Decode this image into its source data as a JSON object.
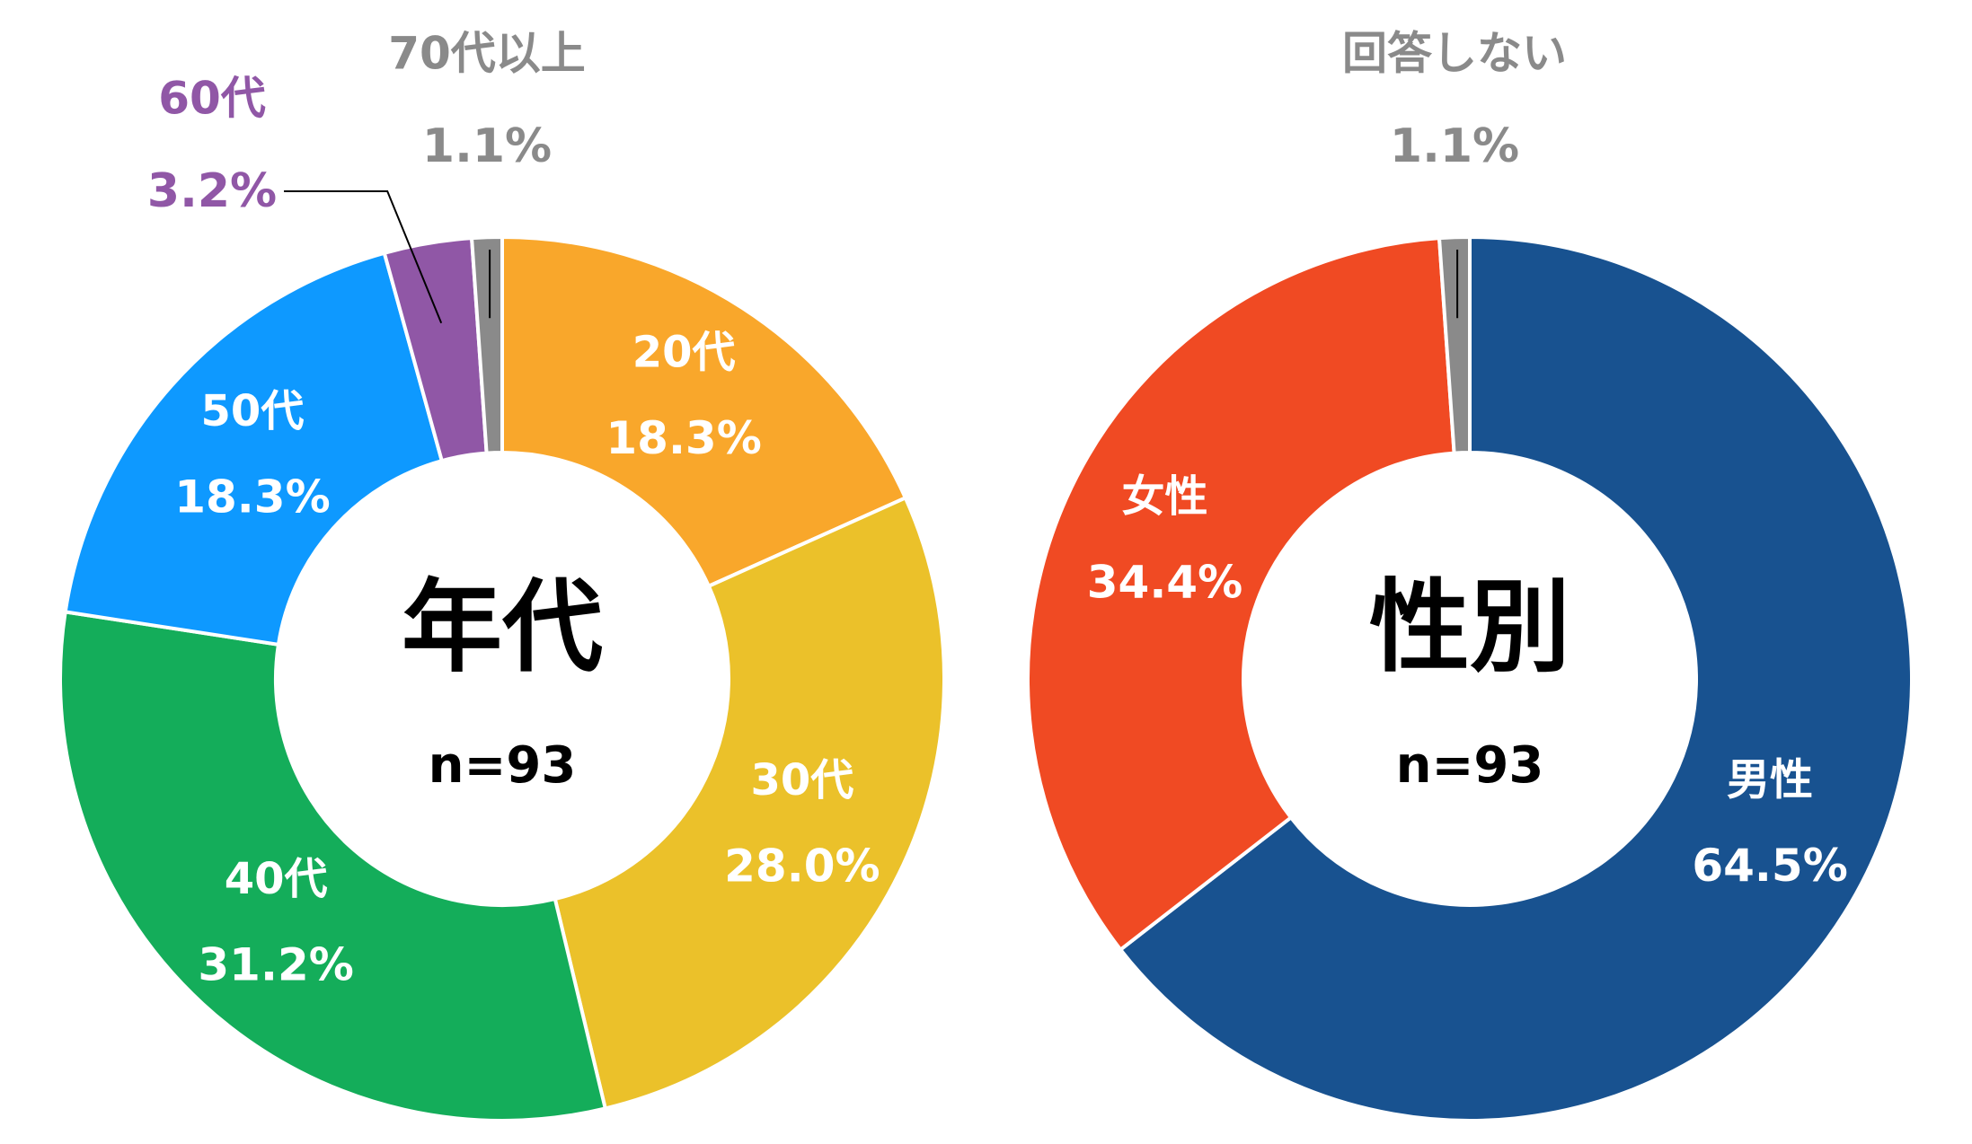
{
  "chart_data": [
    {
      "type": "pie",
      "title": "年代",
      "subtitle": "n=93",
      "categories": [
        "20代",
        "30代",
        "40代",
        "50代",
        "60代",
        "70代以上"
      ],
      "values": [
        18.3,
        28.0,
        31.2,
        18.3,
        3.2,
        1.1
      ],
      "value_labels": [
        "18.3%",
        "28.0%",
        "31.2%",
        "18.3%",
        "3.2%",
        "1.1%"
      ],
      "colors": [
        "#f9a72b",
        "#ebc12a",
        "#14ad5a",
        "#0e99ff",
        "#9057a6",
        "#8a8a8a"
      ]
    },
    {
      "type": "pie",
      "title": "性別",
      "subtitle": "n=93",
      "categories": [
        "男性",
        "女性",
        "回答しない"
      ],
      "values": [
        64.5,
        34.4,
        1.1
      ],
      "value_labels": [
        "64.5%",
        "34.4%",
        "1.1%"
      ],
      "colors": [
        "#185290",
        "#f04a23",
        "#8a8a8a"
      ]
    }
  ]
}
